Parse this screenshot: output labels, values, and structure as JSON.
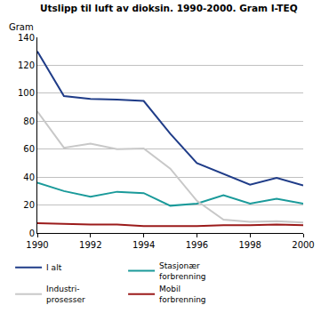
{
  "chart_data": {
    "type": "line",
    "title": "Utslipp til luft av dioksin. 1990-2000. Gram I-TEQ",
    "y_label": "Gram",
    "x": [
      1990,
      1991,
      1992,
      1993,
      1994,
      1995,
      1996,
      1997,
      1998,
      1999,
      2000
    ],
    "series": [
      {
        "name": "I alt",
        "color": "#1f3c88",
        "values": [
          130,
          98,
          96,
          95.5,
          94.5,
          71,
          50,
          42,
          34.5,
          39.5,
          34
        ]
      },
      {
        "name": "Stasjonær\nforbrenning",
        "color": "#1a9a9a",
        "values": [
          36,
          30,
          26,
          29.5,
          28.5,
          19.5,
          21,
          27,
          21,
          24.5,
          21
        ]
      },
      {
        "name": "Industri-\nprosesser",
        "color": "#c8c8c8",
        "values": [
          87,
          61,
          64,
          60,
          60.5,
          46,
          23,
          9.5,
          8,
          8.5,
          7.5
        ]
      },
      {
        "name": "Mobil\nforbrenning",
        "color": "#9b1b1b",
        "values": [
          7,
          6.5,
          6,
          6,
          5,
          5,
          5,
          5.5,
          5.5,
          6,
          5.5
        ]
      }
    ],
    "xlim": [
      1990,
      2000
    ],
    "xticks": [
      1990,
      1992,
      1994,
      1996,
      1998,
      2000
    ],
    "ylim": [
      0,
      140
    ],
    "yticks": [
      0,
      20,
      40,
      60,
      80,
      100,
      120,
      140
    ],
    "grid": true,
    "legend": "bottom"
  }
}
